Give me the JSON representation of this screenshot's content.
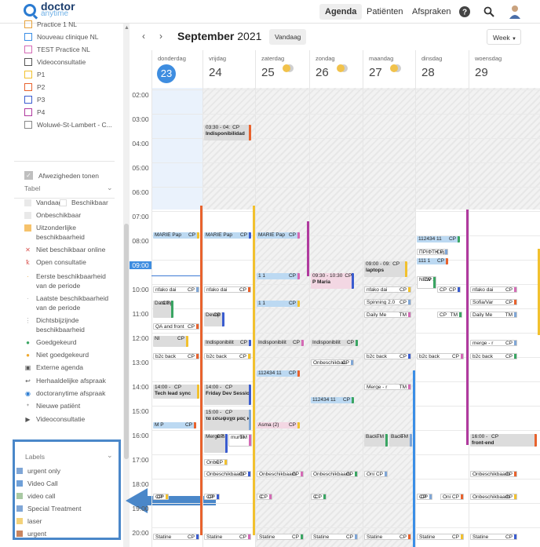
{
  "app": {
    "logo_main": "doctor",
    "logo_sub": "anytime"
  },
  "nav": {
    "agenda": "Agenda",
    "patients": "Patiënten",
    "appointments": "Afspraken"
  },
  "locations": [
    {
      "label": "Practice 1 NL",
      "color": "#e6a23c"
    },
    {
      "label": "Nouveau clinique NL",
      "color": "#3a8ee6"
    },
    {
      "label": "TEST Practice NL",
      "color": "#d46ab5"
    },
    {
      "label": "Videoconsultatie",
      "color": "#555555"
    },
    {
      "label": "P1",
      "color": "#f2c12e"
    },
    {
      "label": "P2",
      "color": "#e8622d"
    },
    {
      "label": "P3",
      "color": "#3a5ccf"
    },
    {
      "label": "P4",
      "color": "#b03a9e"
    },
    {
      "label": "Woluwé-St-Lambert - C...",
      "color": "#888888"
    }
  ],
  "absences_label": "Afwezigheden tonen",
  "legend": {
    "title": "Tabel",
    "items": [
      "Vandaag",
      "Beschikbaar",
      "Onbeschikbaar",
      "Uitzonderlijke beschikbaarheid",
      "Niet beschikbaar online",
      "Open consultatie",
      "Eerste beschikbaarheid van de periode",
      "Laatste beschikbaarheid van de periode",
      "Dichtsbijzijnde beschikbaarheid",
      "Goedgekeurd",
      "Niet goedgekeurd",
      "Externe agenda",
      "Herhaaldelijke afspraak",
      "doctoranytime afspraak",
      "Nieuwe patiënt",
      "Videoconsultatie"
    ]
  },
  "labels": {
    "title": "Labels",
    "items": [
      {
        "label": "urgent only",
        "color": "#7fa6d6"
      },
      {
        "label": "Video Call",
        "color": "#6fa0d8"
      },
      {
        "label": "video call",
        "color": "#a9c9a3"
      },
      {
        "label": "Special Treatment",
        "color": "#7fa6d6"
      },
      {
        "label": "laser",
        "color": "#f3d27a"
      },
      {
        "label": "urgent",
        "color": "#c9855f"
      }
    ]
  },
  "calendar": {
    "month": "September",
    "year": "2021",
    "today_button": "Vandaag",
    "view": "Week",
    "days": [
      {
        "name": "donderdag",
        "date": "23",
        "today": true
      },
      {
        "name": "vrijdag",
        "date": "24"
      },
      {
        "name": "zaterdag",
        "date": "25"
      },
      {
        "name": "zondag",
        "date": "26"
      },
      {
        "name": "maandag",
        "date": "27"
      },
      {
        "name": "dinsdag",
        "date": "28"
      },
      {
        "name": "woensdag",
        "date": "29"
      }
    ],
    "hours": [
      "02:00",
      "03:00",
      "04:00",
      "05:00",
      "06:00",
      "07:00",
      "08:00",
      "09:00",
      "10:00",
      "11:00",
      "12:00",
      "13:00",
      "14:00",
      "15:00",
      "16:00",
      "17:00",
      "18:00",
      "19:00",
      "20:00"
    ],
    "current_time": "09:00"
  },
  "events": [
    {
      "day": 1,
      "time": "03:30 - 04:",
      "tag": "CP",
      "title": "Indisponibilidad"
    },
    {
      "day": 0,
      "title": "MARIE Pap",
      "tag": "CP"
    },
    {
      "day": 1,
      "title": "MARIE Pap",
      "tag": "CP"
    },
    {
      "day": 2,
      "title": "MARIE Pap",
      "tag": "CP"
    },
    {
      "day": 5,
      "title": "112434 11",
      "tag": "CP"
    },
    {
      "day": 5,
      "title": "ΠΡΙΦΤΗ Εριϊ",
      "tag": "CP"
    },
    {
      "day": 5,
      "title": "111 1",
      "tag": "CP"
    },
    {
      "day": 4,
      "time": "09:00 - 09:",
      "tag": "CP",
      "title": "laptops"
    },
    {
      "day": 3,
      "time": "09:30 - 10:30",
      "tag": "CP",
      "title": "P Maria"
    },
    {
      "day": 2,
      "title": "1 1",
      "tag": "CP"
    },
    {
      "day": 5,
      "title": "NEW 1",
      "tag": "CP"
    },
    {
      "day": 0,
      "title": "nfako dai",
      "tag": "CP"
    },
    {
      "day": 1,
      "title": "nfako dai",
      "tag": "CP"
    },
    {
      "day": 4,
      "title": "nfako dai",
      "tag": "CP"
    },
    {
      "day": 5,
      "title": "CP",
      "tag": "CP"
    },
    {
      "day": 6,
      "title": "nfako dai",
      "tag": "CP"
    },
    {
      "day": 0,
      "title": "Data Sprint",
      "tag": "CP"
    },
    {
      "day": 4,
      "title": "Spinning 2.0",
      "tag": "CP"
    },
    {
      "day": 6,
      "title": "Sofia/Var",
      "tag": "CP"
    },
    {
      "day": 2,
      "title": "1 1",
      "tag": "CP"
    },
    {
      "day": 1,
      "title": "Devop",
      "tag": "CP"
    },
    {
      "day": 4,
      "title": "Daily Me",
      "tag": "TM"
    },
    {
      "day": 5,
      "title": "CP",
      "tag": "TM"
    },
    {
      "day": 6,
      "title": "Daily Me",
      "tag": "TM"
    },
    {
      "day": 0,
      "title": "QA and front",
      "tag": "CP"
    },
    {
      "day": 0,
      "title": "NI",
      "tag": "CP"
    },
    {
      "day": 1,
      "title": "Indisponibilit",
      "tag": "CP"
    },
    {
      "day": 2,
      "title": "Indisponibilit",
      "tag": "CP"
    },
    {
      "day": 3,
      "title": "Indisponibilit",
      "tag": "CP"
    },
    {
      "day": 6,
      "title": "merge - r",
      "tag": "CP"
    },
    {
      "day": 0,
      "title": "b2c back",
      "tag": "CP"
    },
    {
      "day": 1,
      "title": "b2c back",
      "tag": "CP"
    },
    {
      "day": 4,
      "title": "b2c back",
      "tag": "CP"
    },
    {
      "day": 5,
      "title": "b2c back",
      "tag": "CP"
    },
    {
      "day": 6,
      "title": "b2c back",
      "tag": "CP"
    },
    {
      "day": 3,
      "title": "Onbeschikbaa",
      "tag": "CP"
    },
    {
      "day": 2,
      "title": "112434 11",
      "tag": "CP"
    },
    {
      "day": 0,
      "time": "14:00 - ",
      "tag": "CP",
      "title": "Tech lead sync"
    },
    {
      "day": 1,
      "time": "14:00 - ",
      "tag": "CP",
      "title": "Friday Dev Sessions"
    },
    {
      "day": 4,
      "title": "Merge - r",
      "tag": "TM"
    },
    {
      "day": 3,
      "title": "112434 11",
      "tag": "CP"
    },
    {
      "day": 1,
      "time": "15:00 - ",
      "tag": "CP",
      "title": "τα εσωψυχα μας κα"
    },
    {
      "day": 0,
      "title": "M P",
      "tag": "CP"
    },
    {
      "day": 2,
      "title": "Asma (2)",
      "tag": "CP"
    },
    {
      "day": 1,
      "title": "Merge Sprint",
      "tag": "CP"
    },
    {
      "day": 1,
      "title": "murtw",
      "tag": "TM"
    },
    {
      "day": 4,
      "title": "Back-",
      "tag": "TM"
    },
    {
      "day": 4,
      "title": "Back-",
      "tag": "TM"
    },
    {
      "day": 6,
      "time": "16:00 - ",
      "tag": "CP",
      "title": "front-end"
    },
    {
      "day": 1,
      "title": "Onbe",
      "tag": "CP"
    },
    {
      "day": 1,
      "title": "Onbeschikbaarh",
      "tag": "CP"
    },
    {
      "day": 2,
      "title": "Onbeschikbaarh",
      "tag": "CP"
    },
    {
      "day": 3,
      "title": "Onbeschikbaarh",
      "tag": "CP"
    },
    {
      "day": 4,
      "title": "Oni",
      "tag": "CP"
    },
    {
      "day": 6,
      "title": "Onbeschikbaarh",
      "tag": "CP"
    },
    {
      "day": 0,
      "title": "CP",
      "tag": "CP"
    },
    {
      "day": 1,
      "title": "CP",
      "tag": "CP"
    },
    {
      "day": 2,
      "title": "C",
      "tag": "CP"
    },
    {
      "day": 3,
      "title": "C",
      "tag": "CP"
    },
    {
      "day": 5,
      "title": "CP",
      "tag": "CP"
    },
    {
      "day": 5,
      "title": "Oni",
      "tag": "CP"
    },
    {
      "day": 6,
      "title": "Onbeschikbaarh",
      "tag": "CP"
    },
    {
      "day": 0,
      "title": "Statine",
      "tag": "CP"
    },
    {
      "day": 1,
      "title": "Statine",
      "tag": "CP"
    },
    {
      "day": 2,
      "title": "Statine",
      "tag": "CP"
    },
    {
      "day": 3,
      "title": "Statine",
      "tag": "CP"
    },
    {
      "day": 4,
      "title": "Statine",
      "tag": "CP"
    },
    {
      "day": 5,
      "title": "Statine",
      "tag": "CP"
    },
    {
      "day": 6,
      "title": "Statine",
      "tag": "CP"
    }
  ]
}
